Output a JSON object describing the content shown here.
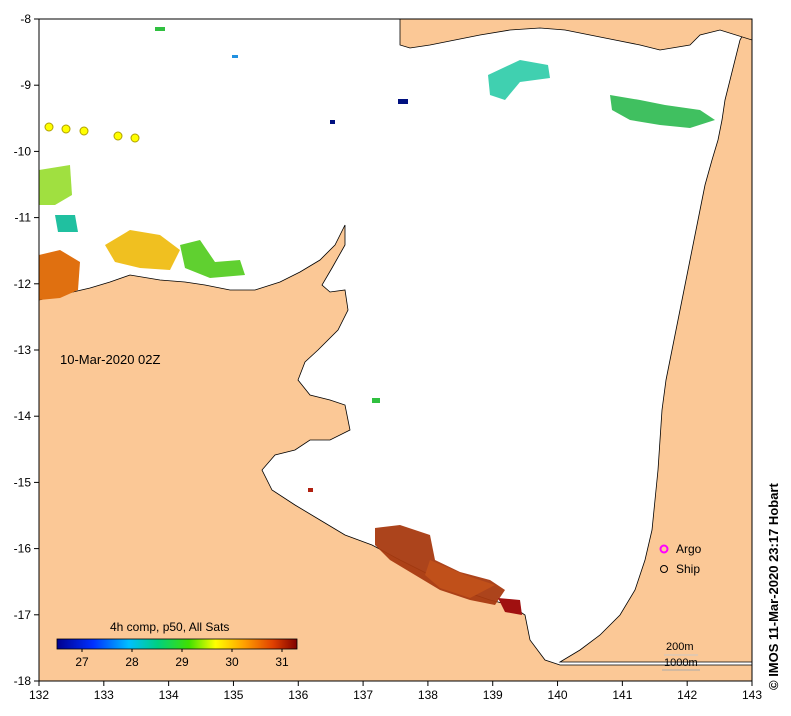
{
  "map": {
    "timestamp": "10-Mar-2020 02Z",
    "credit": "© IMOS 11-Mar-2020 23:17 Hobart",
    "x_axis": {
      "min": 132,
      "max": 143,
      "ticks": [
        "132",
        "133",
        "134",
        "135",
        "136",
        "137",
        "138",
        "139",
        "140",
        "141",
        "142",
        "143"
      ]
    },
    "y_axis": {
      "min": -18,
      "max": -8,
      "ticks": [
        "-8",
        "-9",
        "-10",
        "-11",
        "-12",
        "-13",
        "-14",
        "-15",
        "-16",
        "-17",
        "-18"
      ]
    },
    "legend": {
      "argo_label": "Argo",
      "ship_label": "Ship",
      "argo_color": "#ff00ff"
    },
    "isobaths": {
      "label_200": "200m",
      "label_1000": "1000m"
    },
    "colorbar": {
      "title": "4h comp, p50, All Sats",
      "min": 26.5,
      "max": 31.3,
      "ticks": [
        "27",
        "28",
        "29",
        "30",
        "31"
      ]
    },
    "colors": {
      "land": "#fbc896",
      "ocean": "#ffffff",
      "sst_cold": "#00007f",
      "sst_warm": "#7f0000"
    }
  }
}
